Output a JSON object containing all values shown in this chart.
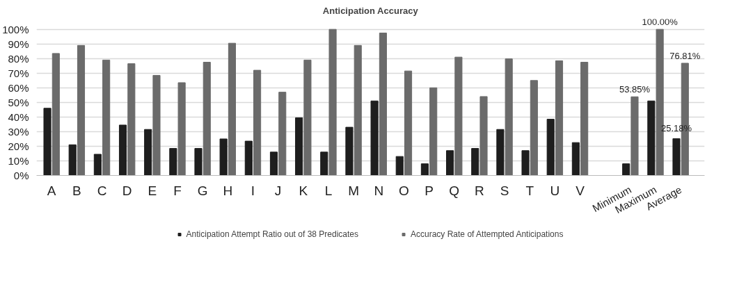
{
  "chart_data": {
    "type": "bar",
    "title": "Anticipation Accuracy",
    "categories": [
      "A",
      "B",
      "C",
      "D",
      "E",
      "F",
      "G",
      "H",
      "I",
      "J",
      "K",
      "L",
      "M",
      "N",
      "O",
      "P",
      "Q",
      "R",
      "S",
      "T",
      "U",
      "V",
      null,
      "Minimum",
      "Maximum",
      "Average"
    ],
    "series": [
      {
        "name": "Anticipation Attempt Ratio out of 38 Predicates",
        "color": "#1e1e1e",
        "values": [
          46,
          21,
          14.5,
          34.5,
          31.5,
          18.5,
          18.5,
          25,
          23.5,
          16,
          39.5,
          16,
          33,
          51,
          13,
          8,
          17,
          18.5,
          31.5,
          17,
          38.5,
          22.5,
          null,
          8,
          51,
          25.18
        ],
        "value_labels": [
          null,
          null,
          null,
          null,
          null,
          null,
          null,
          null,
          null,
          null,
          null,
          null,
          null,
          null,
          null,
          null,
          null,
          null,
          null,
          null,
          null,
          null,
          null,
          null,
          null,
          "25.18%"
        ]
      },
      {
        "name": "Accuracy Rate of Attempted Anticipations",
        "color": "#6b6b6b",
        "values": [
          83.5,
          89,
          79,
          76.5,
          68.5,
          63.5,
          77.5,
          90.5,
          72,
          57,
          79,
          100,
          89,
          97.5,
          71.5,
          60,
          81,
          54,
          79.8,
          65,
          78.5,
          77.5,
          null,
          53.85,
          100,
          76.81
        ],
        "value_labels": [
          null,
          null,
          null,
          null,
          null,
          null,
          null,
          null,
          null,
          null,
          null,
          null,
          null,
          null,
          null,
          null,
          null,
          null,
          null,
          null,
          null,
          null,
          null,
          "53.85%",
          "100.00%",
          "76.81%"
        ]
      }
    ],
    "ylim": [
      0,
      100
    ],
    "yticks": [
      {
        "value": 0,
        "label": "0%"
      },
      {
        "value": 10,
        "label": "10%"
      },
      {
        "value": 20,
        "label": "20%"
      },
      {
        "value": 30,
        "label": "30%"
      },
      {
        "value": 40,
        "label": "40%"
      },
      {
        "value": 50,
        "label": "50%"
      },
      {
        "value": 60,
        "label": "60%"
      },
      {
        "value": 70,
        "label": "70%"
      },
      {
        "value": 80,
        "label": "80%"
      },
      {
        "value": 90,
        "label": "90%"
      },
      {
        "value": 100,
        "label": "100%"
      }
    ],
    "grid": "y",
    "legend": "bottom"
  }
}
